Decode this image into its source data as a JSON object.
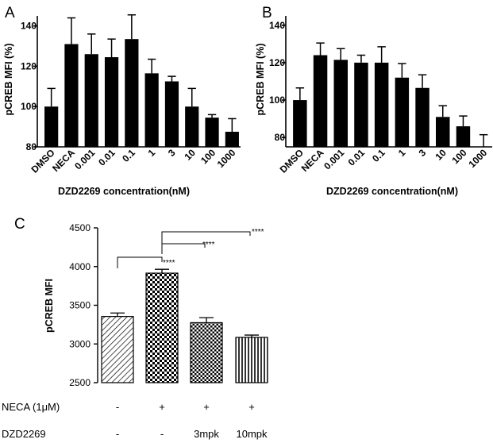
{
  "chart_data": [
    {
      "panel": "A",
      "type": "bar",
      "ylabel": "pCREB MFI (%)",
      "xlabel": "DZD2269 concentration(nM)",
      "ylim": [
        80,
        145
      ],
      "yticks": [
        80,
        100,
        120,
        140
      ],
      "categories": [
        "DMSO",
        "NECA",
        "0.001",
        "0.01",
        "0.1",
        "1",
        "3",
        "10",
        "100",
        "1000"
      ],
      "values": [
        100,
        131,
        126,
        124.5,
        133.5,
        116.5,
        112.5,
        100,
        94.5,
        87.5
      ],
      "errors": [
        9,
        13,
        10,
        9,
        12,
        7,
        2.5,
        9,
        1.5,
        6.5
      ],
      "bar_color": "#000000"
    },
    {
      "panel": "B",
      "type": "bar",
      "ylabel": "pCREB MFI (%)",
      "xlabel": "DZD2269 concentration(nM)",
      "ylim": [
        75,
        145
      ],
      "yticks": [
        80,
        100,
        120,
        140
      ],
      "categories": [
        "DMSO",
        "NECA",
        "0.001",
        "0.01",
        "0.1",
        "1",
        "3",
        "10",
        "100",
        "1000"
      ],
      "values": [
        100,
        124,
        121.5,
        120,
        120,
        112,
        106.5,
        91,
        86,
        75
      ],
      "errors": [
        6.5,
        6.5,
        6,
        4,
        8.5,
        7.5,
        7,
        6,
        5.5,
        6.5
      ],
      "bar_color": "#000000"
    },
    {
      "panel": "C",
      "type": "bar",
      "ylabel": "pCREB MFI",
      "ylim": [
        2500,
        4500
      ],
      "yticks": [
        2500,
        3000,
        3500,
        4000,
        4500
      ],
      "values": [
        3355,
        3915,
        3275,
        3085
      ],
      "errors": [
        45,
        50,
        65,
        30
      ],
      "patterns": [
        "diagonal",
        "checker-fine",
        "checker",
        "vertical"
      ],
      "conditions": [
        {
          "label": "NECA (1μM)",
          "values": [
            "-",
            "+",
            "+",
            "+"
          ]
        },
        {
          "label": "DZD2269",
          "values": [
            "-",
            "-",
            "3mpk",
            "10mpk"
          ]
        }
      ],
      "significance": [
        {
          "from": 0,
          "to": 1,
          "label": "****"
        },
        {
          "from": 1,
          "to": 2,
          "label": "****"
        },
        {
          "from": 1,
          "to": 3,
          "label": "****"
        }
      ]
    }
  ]
}
